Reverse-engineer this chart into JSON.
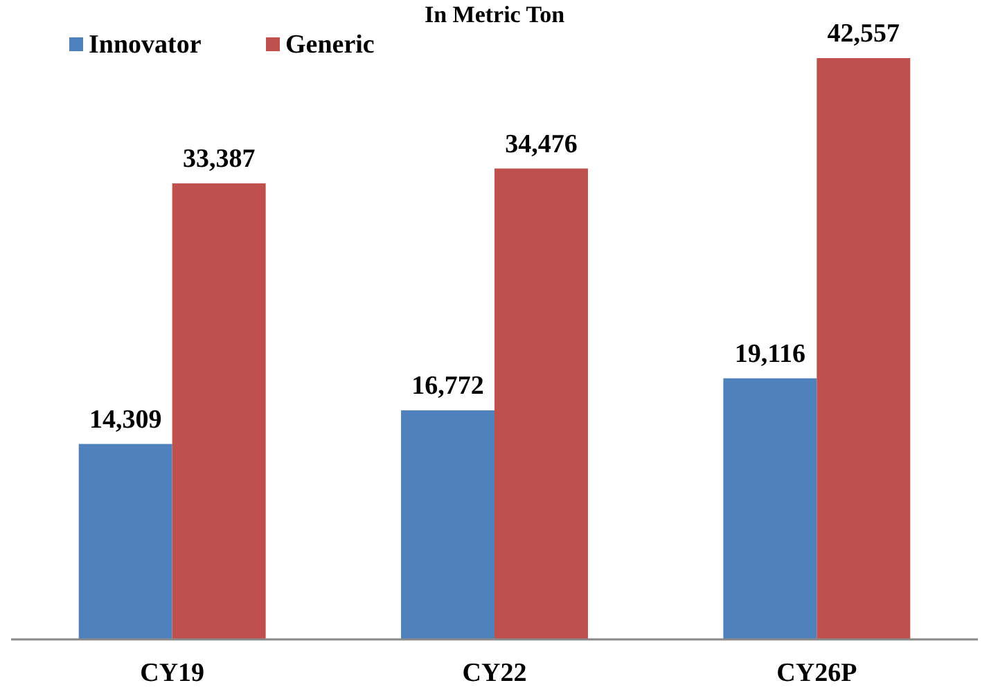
{
  "chart_data": {
    "type": "bar",
    "title": "In Metric Ton",
    "categories": [
      "CY19",
      "CY22",
      "CY26P"
    ],
    "series": [
      {
        "name": "Innovator",
        "color": "#4f81bd",
        "values": [
          14309,
          16772,
          19116
        ],
        "value_labels": [
          "14,309",
          "16,772",
          "19,116"
        ]
      },
      {
        "name": "Generic",
        "color": "#c0504d",
        "values": [
          33387,
          34476,
          42557
        ],
        "value_labels": [
          "33,387",
          "34,476",
          "42,557"
        ]
      }
    ],
    "legend": "top left",
    "grid": false
  }
}
